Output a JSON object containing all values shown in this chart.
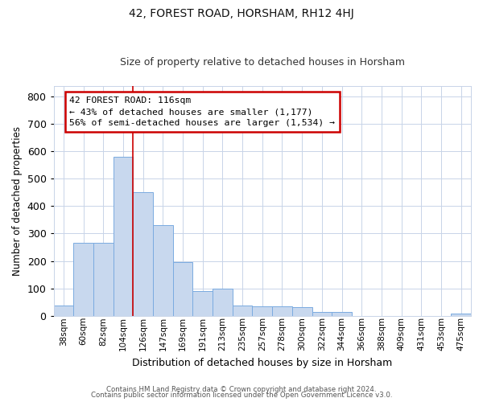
{
  "title": "42, FOREST ROAD, HORSHAM, RH12 4HJ",
  "subtitle": "Size of property relative to detached houses in Horsham",
  "xlabel": "Distribution of detached houses by size in Horsham",
  "ylabel": "Number of detached properties",
  "footnote1": "Contains HM Land Registry data © Crown copyright and database right 2024.",
  "footnote2": "Contains public sector information licensed under the Open Government Licence v3.0.",
  "bar_labels": [
    "38sqm",
    "60sqm",
    "82sqm",
    "104sqm",
    "126sqm",
    "147sqm",
    "169sqm",
    "191sqm",
    "213sqm",
    "235sqm",
    "257sqm",
    "278sqm",
    "300sqm",
    "322sqm",
    "344sqm",
    "366sqm",
    "388sqm",
    "409sqm",
    "431sqm",
    "453sqm",
    "475sqm"
  ],
  "bar_values": [
    38,
    265,
    265,
    580,
    450,
    330,
    195,
    90,
    100,
    38,
    33,
    33,
    30,
    14,
    14,
    0,
    0,
    0,
    0,
    0,
    8
  ],
  "bar_color": "#c8d8ee",
  "bar_edge_color": "#7aabe0",
  "vline_x": 4,
  "vline_color": "#cc0000",
  "ylim": [
    0,
    840
  ],
  "yticks": [
    0,
    100,
    200,
    300,
    400,
    500,
    600,
    700,
    800
  ],
  "annotation_title": "42 FOREST ROAD: 116sqm",
  "annotation_line1": "← 43% of detached houses are smaller (1,177)",
  "annotation_line2": "56% of semi-detached houses are larger (1,534) →",
  "background_color": "#ffffff",
  "grid_color": "#c8d4e8",
  "title_fontsize": 10,
  "subtitle_fontsize": 9
}
